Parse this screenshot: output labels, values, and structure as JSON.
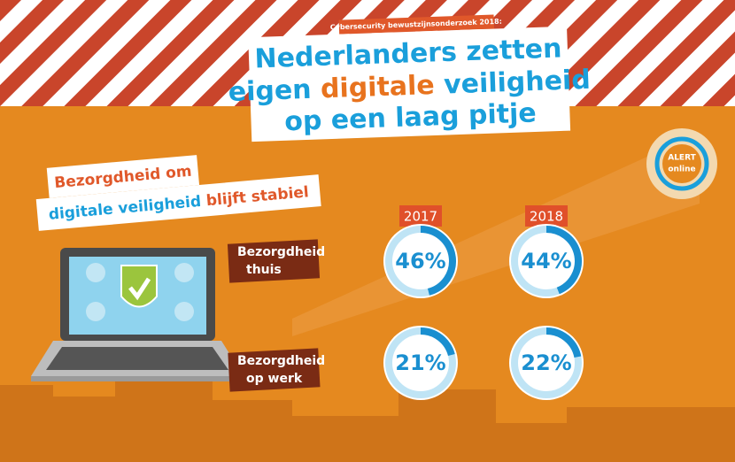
{
  "tag": "Cybersecurity bewustzijnsonderzoek 2018:",
  "headline": {
    "line1": "Nederlanders zetten",
    "line2_start": "eigen",
    "line2_highlight": "digitale",
    "line2_end": "veiligheid",
    "line3": "op een laag pitje"
  },
  "subheading": {
    "line1": "Bezorgdheid om",
    "line2_highlight": "digitale veiligheid",
    "line2_end": "blijft stabiel"
  },
  "logo": {
    "line1": "ALERT",
    "line2": "online"
  },
  "gauges": {
    "years": [
      "2017",
      "2018"
    ],
    "rows": [
      {
        "label": [
          "Bezorgdheid",
          "thuis"
        ],
        "values": [
          46,
          44
        ],
        "value_labels": [
          "46%",
          "44%"
        ]
      },
      {
        "label": [
          "Bezorgdheid",
          "op werk"
        ],
        "values": [
          21,
          22
        ],
        "value_labels": [
          "21%",
          "22%"
        ]
      }
    ]
  }
}
